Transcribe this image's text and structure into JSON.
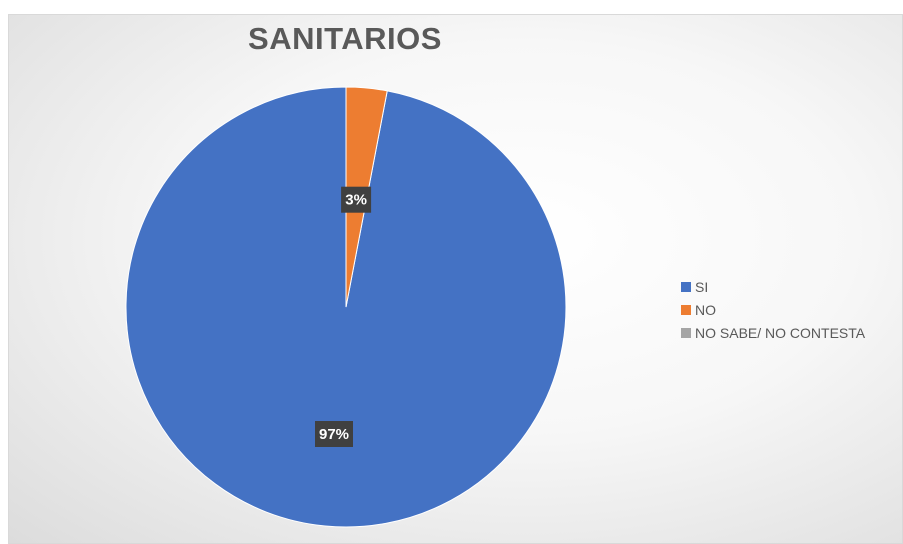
{
  "chart_data": {
    "type": "pie",
    "title": "SANITARIOS",
    "categories": [
      "SI",
      "NO",
      "NO SABE/ NO CONTESTA"
    ],
    "values": [
      97,
      3,
      0
    ],
    "data_labels": [
      "97%",
      "3%",
      ""
    ],
    "colors": [
      "#4472c4",
      "#ed7d31",
      "#a5a5a5"
    ],
    "legend_position": "right",
    "start_angle_deg": 0,
    "direction": "counterclockwise"
  }
}
